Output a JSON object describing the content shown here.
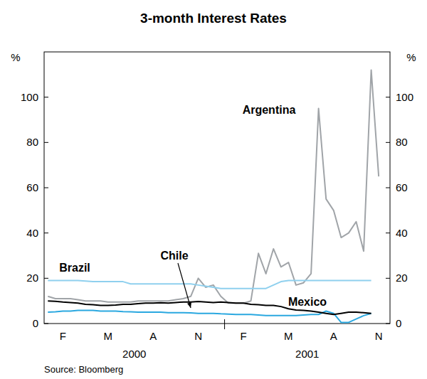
{
  "chart_data": {
    "type": "line",
    "title": "3-month Interest Rates",
    "ylabel": "%",
    "source": "Source: Bloomberg",
    "categories": [
      null,
      null,
      "F",
      null,
      null,
      null,
      null,
      null,
      "M",
      null,
      null,
      null,
      null,
      null,
      "A",
      null,
      null,
      null,
      null,
      null,
      "N",
      null,
      null,
      null,
      null,
      null,
      "F",
      null,
      null,
      null,
      null,
      null,
      "M",
      null,
      null,
      null,
      null,
      null,
      "A",
      null,
      null,
      null,
      null,
      null,
      "N",
      null
    ],
    "x_groups": [
      {
        "label": "2000",
        "from": 0,
        "to": 23
      },
      {
        "label": "2001",
        "from": 24,
        "to": 45
      }
    ],
    "ylim": [
      0,
      120
    ],
    "yticks": [
      0,
      20,
      40,
      60,
      80,
      100
    ],
    "grid": false,
    "series": [
      {
        "name": "Argentina",
        "color": "#a0a4a8",
        "values": [
          12,
          11,
          11,
          11,
          10.5,
          10,
          10,
          10,
          9.5,
          9.5,
          9.5,
          9.5,
          10,
          10,
          10,
          10,
          10,
          10.5,
          11,
          12,
          20,
          16,
          17,
          12,
          9,
          9,
          9,
          10,
          31,
          22,
          33,
          25,
          27,
          17,
          18,
          22,
          95,
          55,
          50,
          38,
          40,
          45,
          32,
          112,
          65,
          null
        ]
      },
      {
        "name": "Brazil",
        "color": "#8fd0ee",
        "values": [
          19,
          19,
          19,
          19,
          19,
          18.8,
          18.5,
          18.5,
          18.5,
          18.5,
          18.5,
          17.5,
          17.5,
          17.5,
          17.5,
          17.5,
          17.5,
          17.5,
          17.5,
          17.5,
          17,
          16.5,
          16,
          15.5,
          15.5,
          15.5,
          15.5,
          15.5,
          15.5,
          15.5,
          17,
          18.5,
          19,
          19,
          19,
          19,
          19,
          19,
          19,
          19,
          19,
          19,
          19,
          19,
          null,
          null
        ]
      },
      {
        "name": "Chile",
        "color": "#2aa8e0",
        "values": [
          5,
          5.2,
          5.5,
          5.5,
          5.8,
          5.8,
          5.8,
          5.5,
          5.5,
          5.5,
          5.3,
          5.2,
          5,
          5,
          5,
          5,
          4.8,
          4.8,
          4.8,
          4.7,
          4.5,
          4.5,
          4.5,
          4.3,
          4.2,
          4,
          4,
          4,
          3.8,
          3.5,
          3.5,
          3.5,
          3.5,
          3.5,
          3.8,
          4,
          4,
          5.5,
          4.5,
          0.5,
          0.5,
          2,
          3.5,
          4.5,
          null,
          null
        ]
      },
      {
        "name": "Mexico",
        "color": "#000000",
        "values": [
          10,
          9.8,
          9.5,
          9.3,
          9,
          8.5,
          8.3,
          8,
          8,
          8.2,
          8.5,
          8.5,
          8.8,
          9,
          9,
          9.2,
          9,
          9.3,
          9.5,
          9.5,
          9.7,
          9.5,
          9.3,
          9.5,
          9.3,
          9,
          9,
          8.5,
          8.3,
          8,
          8,
          7.5,
          6.5,
          6,
          5.8,
          5.5,
          5,
          4.5,
          4,
          4.5,
          5,
          5,
          4.8,
          4.5,
          null,
          null
        ]
      }
    ]
  }
}
